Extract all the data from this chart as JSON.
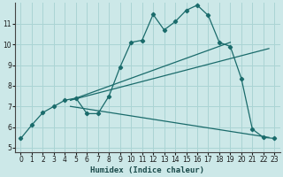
{
  "xlabel": "Humidex (Indice chaleur)",
  "bg_color": "#cce8e8",
  "line_color": "#1a6b6b",
  "grid_color": "#aad4d4",
  "xlim": [
    -0.5,
    23.5
  ],
  "ylim": [
    4.8,
    12.0
  ],
  "xticks": [
    0,
    1,
    2,
    3,
    4,
    5,
    6,
    7,
    8,
    9,
    10,
    11,
    12,
    13,
    14,
    15,
    16,
    17,
    18,
    19,
    20,
    21,
    22,
    23
  ],
  "yticks": [
    5,
    6,
    7,
    8,
    9,
    10,
    11
  ],
  "series1_x": [
    0,
    1,
    2,
    3,
    4,
    5,
    6,
    7,
    8,
    9,
    10,
    11,
    12,
    13,
    14,
    15,
    16,
    17,
    18,
    19,
    20,
    21,
    22,
    23
  ],
  "series1_y": [
    5.45,
    6.1,
    6.7,
    7.0,
    7.3,
    7.4,
    6.65,
    6.65,
    7.5,
    8.9,
    10.1,
    10.2,
    11.45,
    10.7,
    11.1,
    11.65,
    11.9,
    11.4,
    10.1,
    9.9,
    8.35,
    5.9,
    5.5,
    5.45
  ],
  "line2_x": [
    4.5,
    19.0
  ],
  "line2_y": [
    7.3,
    10.1
  ],
  "line3_x": [
    4.5,
    22.5
  ],
  "line3_y": [
    7.3,
    9.8
  ],
  "line4_x": [
    4.5,
    22.5
  ],
  "line4_y": [
    7.0,
    5.5
  ]
}
